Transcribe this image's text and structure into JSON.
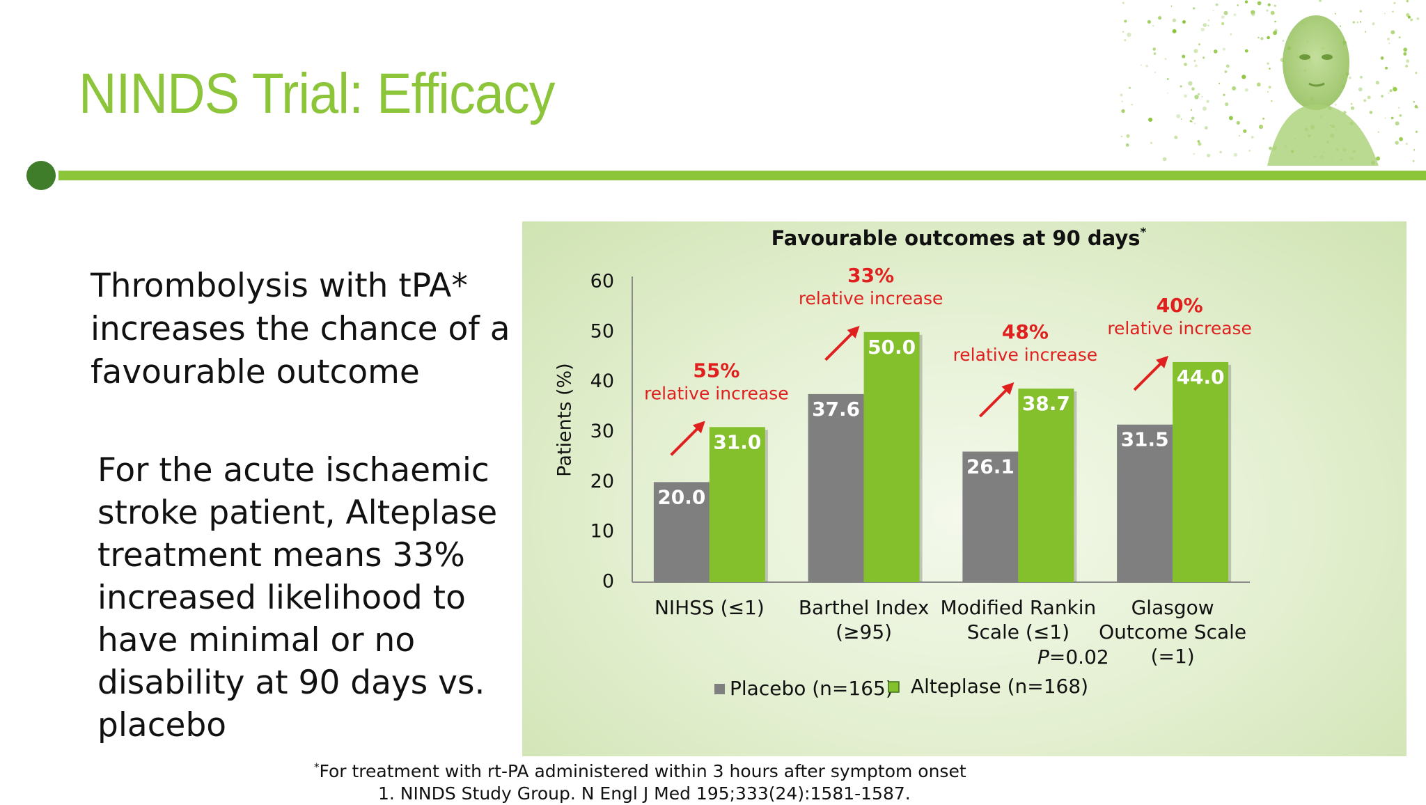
{
  "slide": {
    "title": "NINDS Trial: Efficacy",
    "lead_text": "Thrombolysis with tPA* increases the chance of a favourable outcome",
    "body_text": "For the acute ischaemic stroke patient, Alteplase treatment means 33% increased likelihood to have minimal or no disability at 90 days vs. placebo",
    "footnote_mark": "*",
    "footnote": "For treatment with rt-PA  administered within 3 hours after symptom onset",
    "reference": "1. NINDS Study Group. N Engl J Med 195;333(24):1581-1587.",
    "colors": {
      "accent_green": "#8cc43a",
      "dark_green": "#3f7d2a",
      "placebo_grey": "#7f7f7f",
      "alteplase_green": "#84bf2c",
      "annotation_red": "#e0201e"
    }
  },
  "chart_data": {
    "type": "bar",
    "title": "Favourable outcomes at 90 days",
    "title_mark": "*",
    "ylabel": "Patients (%)",
    "xlabel": "",
    "ylim": [
      0,
      60
    ],
    "yticks": [
      0,
      10,
      20,
      30,
      40,
      50,
      60
    ],
    "categories": [
      [
        "NIHSS (≤1)"
      ],
      [
        "Barthel Index",
        "(≥95)"
      ],
      [
        "Modified Rankin",
        "Scale (≤1)"
      ],
      [
        "Glasgow",
        "Outcome Scale",
        "(=1)"
      ]
    ],
    "series": [
      {
        "name": "Placebo (n=165)",
        "color": "#7f7f7f",
        "values": [
          20.0,
          37.6,
          26.1,
          31.5
        ],
        "labels": [
          "20.0",
          "37.6",
          "26.1",
          "31.5"
        ]
      },
      {
        "name": "Alteplase (n=168)",
        "color": "#84bf2c",
        "values": [
          31.0,
          50.0,
          38.7,
          44.0
        ],
        "labels": [
          "31.0",
          "50.0",
          "38.7",
          "44.0"
        ]
      }
    ],
    "annotations": [
      {
        "pct": "55%",
        "text": "relative increase"
      },
      {
        "pct": "33%",
        "text": "relative increase"
      },
      {
        "pct": "48%",
        "text": "relative increase"
      },
      {
        "pct": "40%",
        "text": "relative increase"
      }
    ],
    "p_value": {
      "p": "P",
      "rest": "=0.02"
    },
    "grid": false,
    "legend": "bottom"
  }
}
